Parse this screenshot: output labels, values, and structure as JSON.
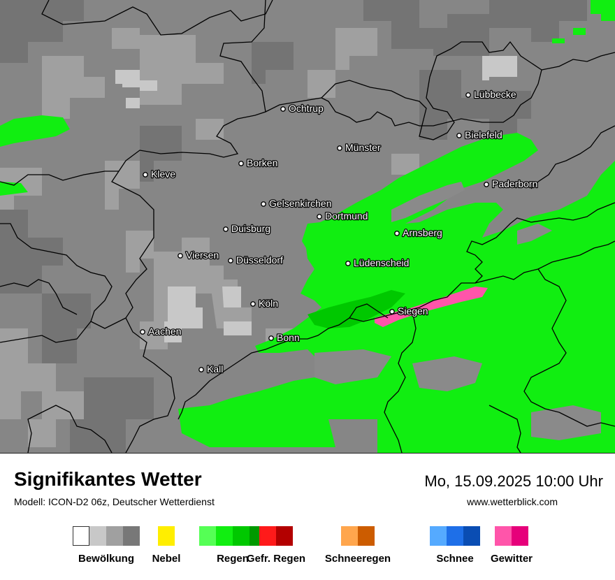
{
  "map": {
    "cities": [
      {
        "name": "Ochtrup"
      },
      {
        "name": "Lübbecke"
      },
      {
        "name": "Bielefeld"
      },
      {
        "name": "Münster"
      },
      {
        "name": "Borken"
      },
      {
        "name": "Kleve"
      },
      {
        "name": "Paderborn"
      },
      {
        "name": "Gelsenkirchen"
      },
      {
        "name": "Dortmund"
      },
      {
        "name": "Duisburg"
      },
      {
        "name": "Arnsberg"
      },
      {
        "name": "Viersen"
      },
      {
        "name": "Düsseldorf"
      },
      {
        "name": "Lüdenscheid"
      },
      {
        "name": "Köln"
      },
      {
        "name": "Siegen"
      },
      {
        "name": "Aachen"
      },
      {
        "name": "Bonn"
      },
      {
        "name": "Kall"
      }
    ]
  },
  "info": {
    "title": "Signifikantes Wetter",
    "model": "Modell: ICON-D2 06z, Deutscher Wetterdienst",
    "datetime": "Mo, 15.09.2025 10:00 Uhr",
    "website": "www.wetterblick.com"
  },
  "legend": [
    {
      "label": "Bewölkung",
      "colors": [
        "#ffffff",
        "#c8c8c8",
        "#a0a0a0",
        "#787878"
      ]
    },
    {
      "label": "Nebel",
      "colors": [
        "#ffee00"
      ]
    },
    {
      "label": "Regen",
      "colors": [
        "#55ff55",
        "#11ee11",
        "#00c800",
        "#009900"
      ]
    },
    {
      "label": "Gefr. Regen",
      "colors": [
        "#ff1a1a",
        "#b30000"
      ]
    },
    {
      "label": "Schneeregen",
      "colors": [
        "#ffa64d",
        "#cc5c00"
      ]
    },
    {
      "label": "Schnee",
      "colors": [
        "#55aaff",
        "#1e6fe8",
        "#0a4db3"
      ]
    },
    {
      "label": "Gewitter",
      "colors": [
        "#ff55aa",
        "#e6007a"
      ]
    }
  ],
  "colors": {
    "cloud_light": "#c8c8c8",
    "cloud_mid": "#a0a0a0",
    "cloud_dark": "#787878",
    "rain_light": "#11ee11",
    "rain_mid": "#00c800",
    "thunder": "#ff55aa",
    "border": "#000000"
  }
}
